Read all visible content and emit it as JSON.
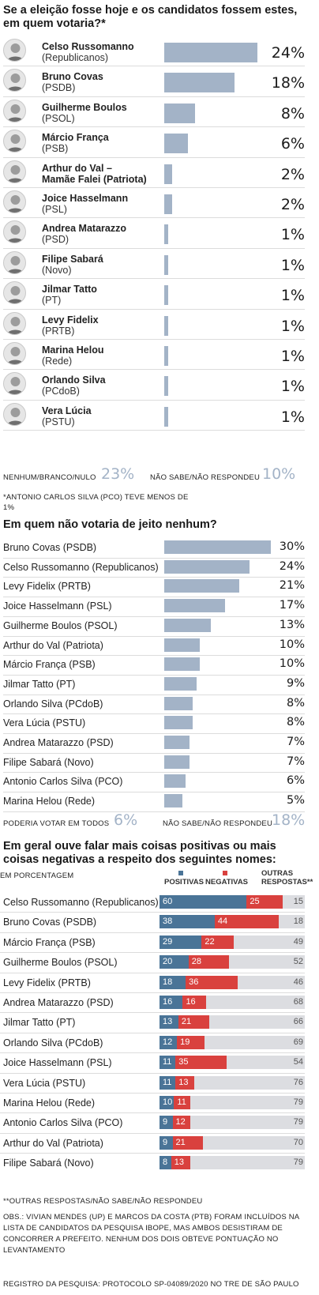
{
  "section1": {
    "title": "Se a eleição fosse hoje e os candidatos fossem estes, em quem votaria?*",
    "candidates": [
      {
        "name": "Celso Russomanno",
        "party": "(Republicanos)",
        "value": 24,
        "pct": "24%"
      },
      {
        "name": "Bruno Covas",
        "party": "(PSDB)",
        "value": 18,
        "pct": "18%"
      },
      {
        "name": "Guilherme Boulos",
        "party": "(PSOL)",
        "value": 8,
        "pct": "8%"
      },
      {
        "name": "Márcio França",
        "party": "(PSB)",
        "value": 6,
        "pct": "6%"
      },
      {
        "name": "Arthur do Val –",
        "name2": "Mamãe Falei (Patriota)",
        "party": "",
        "value": 2,
        "pct": "2%"
      },
      {
        "name": "Joice Hasselmann",
        "party": "(PSL)",
        "value": 2,
        "pct": "2%"
      },
      {
        "name": "Andrea Matarazzo",
        "party": "(PSD)",
        "value": 1,
        "pct": "1%"
      },
      {
        "name": "Filipe Sabará",
        "party": "(Novo)",
        "value": 1,
        "pct": "1%"
      },
      {
        "name": "Jilmar Tatto",
        "party": "(PT)",
        "value": 1,
        "pct": "1%"
      },
      {
        "name": "Levy Fidelix",
        "party": "(PRTB)",
        "value": 1,
        "pct": "1%"
      },
      {
        "name": "Marina Helou",
        "party": "(Rede)",
        "value": 1,
        "pct": "1%"
      },
      {
        "name": "Orlando Silva",
        "party": "(PCdoB)",
        "value": 1,
        "pct": "1%"
      },
      {
        "name": "Vera Lúcia",
        "party": "(PSTU)",
        "value": 1,
        "pct": "1%"
      }
    ],
    "footer_left_label": "NENHUM/BRANCO/NULO",
    "footer_left_value": "23%",
    "footer_right_label": "NÃO SABE/NÃO RESPONDEU",
    "footer_right_value": "10%",
    "note_line1": "*ANTONIO CARLOS SILVA (PCO) TEVE MENOS DE",
    "note_line2": "1%"
  },
  "section2": {
    "title": "Em quem não votaria de jeito nenhum?",
    "rows": [
      {
        "label": "Bruno Covas (PSDB)",
        "value": 30,
        "pct": "30%"
      },
      {
        "label": "Celso Russomanno (Republicanos)",
        "value": 24,
        "pct": "24%"
      },
      {
        "label": "Levy Fidelix (PRTB)",
        "value": 21,
        "pct": "21%"
      },
      {
        "label": "Joice Hasselmann (PSL)",
        "value": 17,
        "pct": "17%"
      },
      {
        "label": "Guilherme Boulos (PSOL)",
        "value": 13,
        "pct": "13%"
      },
      {
        "label": "Arthur do Val (Patriota)",
        "value": 10,
        "pct": "10%"
      },
      {
        "label": "Márcio França (PSB)",
        "value": 10,
        "pct": "10%"
      },
      {
        "label": "Jilmar Tatto (PT)",
        "value": 9,
        "pct": "9%"
      },
      {
        "label": "Orlando Silva (PCdoB)",
        "value": 8,
        "pct": "8%"
      },
      {
        "label": "Vera Lúcia (PSTU)",
        "value": 8,
        "pct": "8%"
      },
      {
        "label": "Andrea Matarazzo (PSD)",
        "value": 7,
        "pct": "7%"
      },
      {
        "label": "Filipe Sabará (Novo)",
        "value": 7,
        "pct": "7%"
      },
      {
        "label": "Antonio Carlos Silva (PCO)",
        "value": 6,
        "pct": "6%"
      },
      {
        "label": "Marina Helou (Rede)",
        "value": 5,
        "pct": "5%"
      }
    ],
    "footer_left_label": "PODERIA VOTAR EM TODOS",
    "footer_left_value": "6%",
    "footer_right_label": "NÃO SABE/NÃO RESPONDEU",
    "footer_right_value": "18%"
  },
  "section3": {
    "title": "Em geral ouve falar mais coisas positivas ou mais coisas negativas a respeito dos seguintes nomes:",
    "units": "EM PORCENTAGEM",
    "legend_positive": "POSITIVAS",
    "legend_negative": "NEGATIVAS",
    "legend_other_line1": "OUTRAS",
    "legend_other_line2": "RESPOSTAS**",
    "rows": [
      {
        "label": "Celso Russomanno (Republicanos)",
        "pos": 60,
        "neg": 25,
        "other": 15
      },
      {
        "label": "Bruno Covas (PSDB)",
        "pos": 38,
        "neg": 44,
        "other": 18
      },
      {
        "label": "Márcio França (PSB)",
        "pos": 29,
        "neg": 22,
        "other": 49
      },
      {
        "label": "Guilherme Boulos (PSOL)",
        "pos": 20,
        "neg": 28,
        "other": 52
      },
      {
        "label": "Levy Fidelix (PRTB)",
        "pos": 18,
        "neg": 36,
        "other": 46
      },
      {
        "label": "Andrea Matarazzo (PSD)",
        "pos": 16,
        "neg": 16,
        "other": 68
      },
      {
        "label": "Jilmar Tatto (PT)",
        "pos": 13,
        "neg": 21,
        "other": 66
      },
      {
        "label": "Orlando Silva (PCdoB)",
        "pos": 12,
        "neg": 19,
        "other": 69
      },
      {
        "label": "Joice Hasselmann (PSL)",
        "pos": 11,
        "neg": 35,
        "other": 54
      },
      {
        "label": "Vera Lúcia (PSTU)",
        "pos": 11,
        "neg": 13,
        "other": 76
      },
      {
        "label": "Marina Helou (Rede)",
        "pos": 10,
        "neg": 11,
        "other": 79
      },
      {
        "label": "Antonio Carlos Silva (PCO)",
        "pos": 9,
        "neg": 12,
        "other": 79
      },
      {
        "label": "Arthur do Val (Patriota)",
        "pos": 9,
        "neg": 21,
        "other": 70
      },
      {
        "label": "Filipe Sabará (Novo)",
        "pos": 8,
        "neg": 13,
        "other": 79
      }
    ],
    "footnote": "**OUTRAS RESPOSTAS/NÃO SABE/NÃO RESPONDEU"
  },
  "obs": "OBS.: VIVIAN MENDES (UP) E MARCOS DA COSTA (PTB) FORAM INCLUÍDOS NA LISTA DE CANDIDATOS DA PESQUISA IBOPE, MAS AMBOS DESISTIRAM DE CONCORRER A PREFEITO. NENHUM DOS DOIS OBTEVE PONTUAÇÃO NO LEVANTAMENTO",
  "registro": "REGISTRO DA PESQUISA: PROTOCOLO SP-04089/2020 NO TRE DE SÃO PAULO",
  "colors": {
    "bar": "#a3b3c7",
    "positive": "#4a7497",
    "negative": "#d9413e",
    "other": "#dcdde1"
  },
  "chart_data": [
    {
      "type": "bar",
      "title": "Se a eleição fosse hoje e os candidatos fossem estes, em quem votaria?*",
      "categories": [
        "Celso Russomanno (Republicanos)",
        "Bruno Covas (PSDB)",
        "Guilherme Boulos (PSOL)",
        "Márcio França (PSB)",
        "Arthur do Val – Mamãe Falei (Patriota)",
        "Joice Hasselmann (PSL)",
        "Andrea Matarazzo (PSD)",
        "Filipe Sabará (Novo)",
        "Jilmar Tatto (PT)",
        "Levy Fidelix (PRTB)",
        "Marina Helou (Rede)",
        "Orlando Silva (PCdoB)",
        "Vera Lúcia (PSTU)"
      ],
      "values": [
        24,
        18,
        8,
        6,
        2,
        2,
        1,
        1,
        1,
        1,
        1,
        1,
        1
      ]
    },
    {
      "type": "bar",
      "title": "Em quem não votaria de jeito nenhum?",
      "categories": [
        "Bruno Covas (PSDB)",
        "Celso Russomanno (Republicanos)",
        "Levy Fidelix (PRTB)",
        "Joice Hasselmann (PSL)",
        "Guilherme Boulos (PSOL)",
        "Arthur do Val (Patriota)",
        "Márcio França (PSB)",
        "Jilmar Tatto (PT)",
        "Orlando Silva (PCdoB)",
        "Vera Lúcia (PSTU)",
        "Andrea Matarazzo (PSD)",
        "Filipe Sabará (Novo)",
        "Antonio Carlos Silva (PCO)",
        "Marina Helou (Rede)"
      ],
      "values": [
        30,
        24,
        21,
        17,
        13,
        10,
        10,
        9,
        8,
        8,
        7,
        7,
        6,
        5
      ]
    },
    {
      "type": "bar",
      "title": "Em geral ouve falar mais coisas positivas ou mais coisas negativas a respeito dos seguintes nomes:",
      "categories": [
        "Celso Russomanno (Republicanos)",
        "Bruno Covas (PSDB)",
        "Márcio França (PSB)",
        "Guilherme Boulos (PSOL)",
        "Levy Fidelix (PRTB)",
        "Andrea Matarazzo (PSD)",
        "Jilmar Tatto (PT)",
        "Orlando Silva (PCdoB)",
        "Joice Hasselmann (PSL)",
        "Vera Lúcia (PSTU)",
        "Marina Helou (Rede)",
        "Antonio Carlos Silva (PCO)",
        "Arthur do Val (Patriota)",
        "Filipe Sabará (Novo)"
      ],
      "series": [
        {
          "name": "POSITIVAS",
          "values": [
            60,
            38,
            29,
            20,
            18,
            16,
            13,
            12,
            11,
            11,
            10,
            9,
            9,
            8
          ]
        },
        {
          "name": "NEGATIVAS",
          "values": [
            25,
            44,
            22,
            28,
            36,
            16,
            21,
            19,
            35,
            13,
            11,
            12,
            21,
            13
          ]
        },
        {
          "name": "OUTRAS RESPOSTAS**",
          "values": [
            15,
            18,
            49,
            52,
            46,
            68,
            66,
            69,
            54,
            76,
            79,
            79,
            70,
            79
          ]
        }
      ]
    }
  ]
}
